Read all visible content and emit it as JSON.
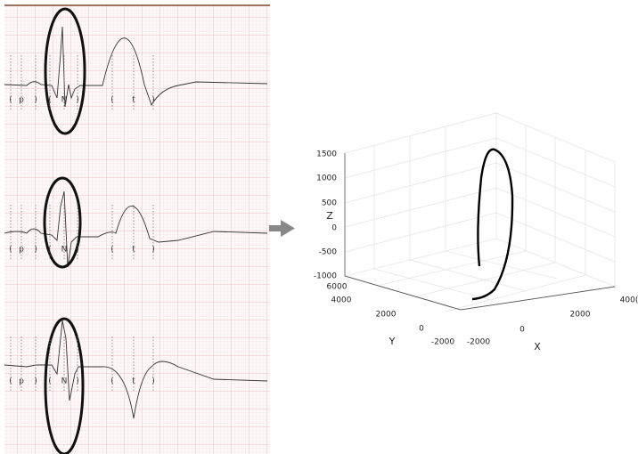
{
  "ecg": {
    "strips": [
      {
        "labels": [
          "(",
          "p",
          ")",
          "(",
          "N",
          ")",
          "(",
          "t",
          ")"
        ]
      },
      {
        "labels": [
          "(",
          "p",
          ")",
          "(",
          "N",
          ")",
          "(",
          "t",
          ")"
        ]
      },
      {
        "labels": [
          "(",
          "p",
          ")",
          "(",
          "N",
          ")",
          "(",
          "t",
          ")"
        ]
      }
    ]
  },
  "plot3d": {
    "z_label": "Z",
    "y_label": "Y",
    "x_label": "X",
    "z_ticks": [
      "1500",
      "1000",
      "500",
      "0",
      "-500",
      "-1000"
    ],
    "y_ticks": [
      "6000",
      "4000",
      "2000",
      "0",
      "-2000"
    ],
    "x_ticks": [
      "-2000",
      "0",
      "2000",
      "400("
    ]
  }
}
